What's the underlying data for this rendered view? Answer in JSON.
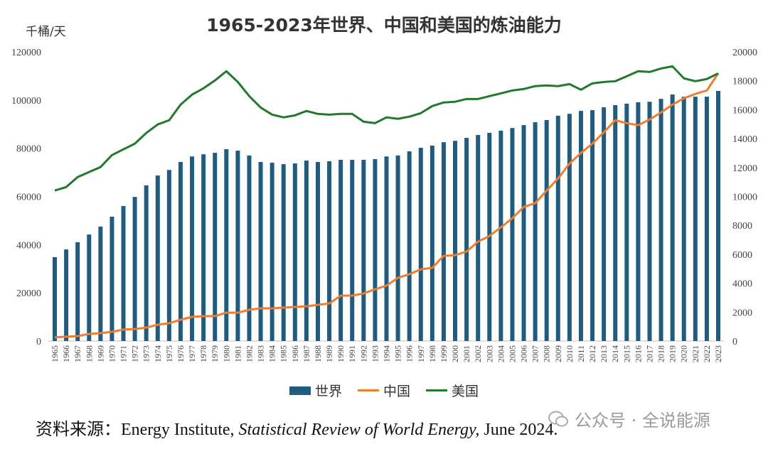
{
  "chart_data": {
    "type": "bar+line",
    "title": "1965-2023年世界、中国和美国的炼油能力",
    "unit_label": "千桶/天",
    "categories": [
      "1965",
      "1966",
      "1967",
      "1968",
      "1969",
      "1970",
      "1971",
      "1972",
      "1973",
      "1974",
      "1975",
      "1976",
      "1977",
      "1978",
      "1979",
      "1980",
      "1981",
      "1982",
      "1983",
      "1984",
      "1985",
      "1986",
      "1987",
      "1988",
      "1989",
      "1990",
      "1991",
      "1992",
      "1993",
      "1994",
      "1995",
      "1996",
      "1997",
      "1998",
      "1999",
      "2000",
      "2001",
      "2002",
      "2003",
      "2004",
      "2005",
      "2006",
      "2007",
      "2008",
      "2009",
      "2010",
      "2011",
      "2012",
      "2013",
      "2014",
      "2015",
      "2016",
      "2017",
      "2018",
      "2019",
      "2020",
      "2021",
      "2022",
      "2023"
    ],
    "left_axis": {
      "ylim": [
        0,
        120000
      ],
      "ticks": [
        "0",
        "20000",
        "40000",
        "60000",
        "80000",
        "100000",
        "120000"
      ]
    },
    "right_axis": {
      "ylim": [
        0,
        20000
      ],
      "ticks": [
        "0",
        "2000",
        "4000",
        "6000",
        "8000",
        "10000",
        "12000",
        "14000",
        "16000",
        "18000",
        "20000"
      ]
    },
    "grid": false,
    "legend_placement": "bottom",
    "series": [
      {
        "name": "世界",
        "type": "bar",
        "axis": "left",
        "color": "#1f5c80",
        "values": [
          34800,
          38000,
          41000,
          44200,
          47500,
          51600,
          56000,
          59800,
          64600,
          68700,
          71000,
          74300,
          76600,
          77500,
          78100,
          79600,
          79000,
          77000,
          74300,
          74000,
          73400,
          73700,
          74900,
          74300,
          74600,
          75200,
          75200,
          75200,
          75500,
          76600,
          77000,
          78700,
          80200,
          81100,
          82500,
          83100,
          84300,
          85500,
          86400,
          87300,
          88400,
          89600,
          90800,
          91700,
          93500,
          94300,
          95500,
          95800,
          97000,
          97900,
          98500,
          99100,
          99300,
          100500,
          102300,
          101400,
          101400,
          101400,
          103800
        ]
      },
      {
        "name": "中国",
        "type": "line",
        "axis": "right",
        "color": "#ed7d31",
        "values": [
          250,
          300,
          340,
          490,
          540,
          640,
          790,
          830,
          930,
          1130,
          1230,
          1470,
          1670,
          1720,
          1720,
          1960,
          1960,
          2160,
          2260,
          2260,
          2310,
          2360,
          2400,
          2500,
          2600,
          3140,
          3140,
          3290,
          3580,
          3830,
          4370,
          4620,
          4960,
          5060,
          5890,
          5940,
          6190,
          6870,
          7270,
          7860,
          8490,
          9280,
          9530,
          10410,
          11240,
          12280,
          13010,
          13650,
          14440,
          15270,
          15070,
          14930,
          15320,
          15810,
          16350,
          16790,
          17090,
          17330,
          18510
        ]
      },
      {
        "name": "美国",
        "type": "line",
        "axis": "right",
        "color": "#217a2b",
        "values": [
          10410,
          10650,
          11340,
          11690,
          12030,
          12860,
          13260,
          13650,
          14390,
          14980,
          15270,
          16350,
          17040,
          17480,
          18020,
          18660,
          17920,
          16940,
          16150,
          15660,
          15470,
          15610,
          15910,
          15710,
          15660,
          15710,
          15710,
          15170,
          15070,
          15470,
          15370,
          15520,
          15760,
          16250,
          16500,
          16550,
          16740,
          16740,
          16940,
          17130,
          17330,
          17430,
          17630,
          17680,
          17630,
          17770,
          17380,
          17820,
          17920,
          17970,
          18310,
          18660,
          18610,
          18850,
          19000,
          18170,
          17970,
          18120,
          18510
        ]
      }
    ]
  },
  "source": {
    "prefix": "资料来源：Energy Institute, ",
    "italic": "Statistical Review of World Energy,",
    "suffix": " June 2024."
  },
  "watermark": {
    "text": "公众号 · 全说能源",
    "icon": "wechat-icon"
  }
}
